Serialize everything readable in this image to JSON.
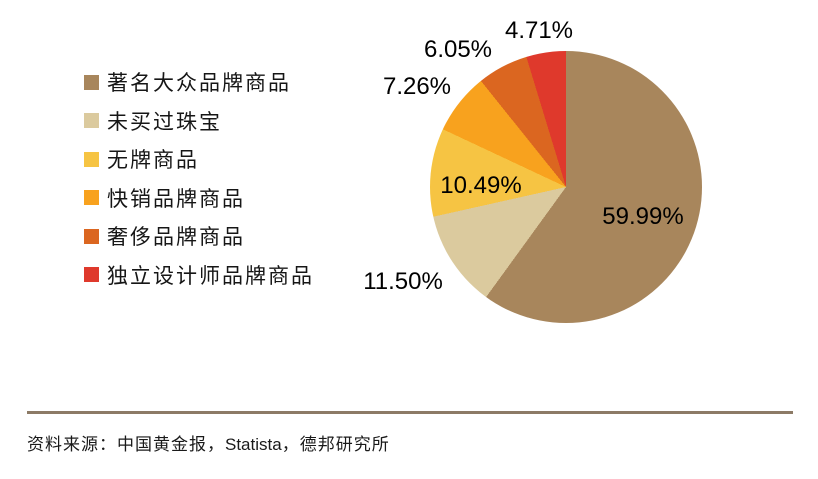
{
  "chart_data": {
    "type": "pie",
    "title": "",
    "categories": [
      "著名大众品牌商品",
      "未买过珠宝",
      "无牌商品",
      "快销品牌商品",
      "奢侈品牌商品",
      "独立设计师品牌商品"
    ],
    "values": [
      59.99,
      11.5,
      10.49,
      7.26,
      6.05,
      4.71
    ],
    "data_labels": [
      "59.99%",
      "11.50%",
      "10.49%",
      "7.26%",
      "6.05%",
      "4.71%"
    ],
    "colors": [
      "#A8865C",
      "#DBCA9E",
      "#F6C443",
      "#F8A21E",
      "#DB6620",
      "#DF392C"
    ],
    "start_angle_deg": 0,
    "direction": "clockwise",
    "legend_position": "left",
    "data_label_color": "#000000",
    "grid": false
  },
  "source_note": {
    "prefix": "资料来源：中国黄金报，",
    "brand": "Statista",
    "suffix": "，德邦研究所"
  },
  "styles": {
    "background": "#FFFFFF",
    "divider_color": "#8C7A66"
  }
}
